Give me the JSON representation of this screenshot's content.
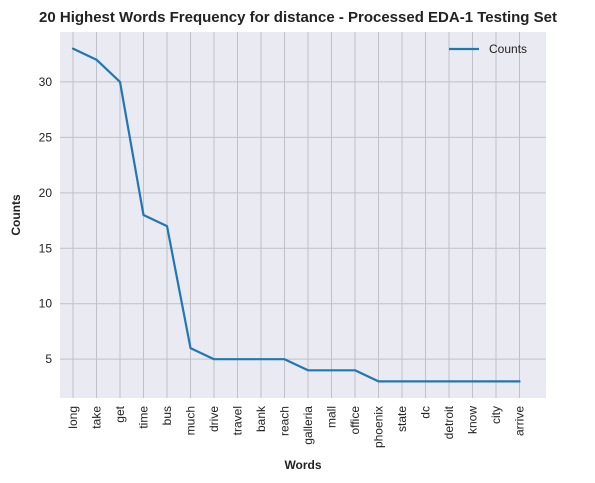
{
  "chart_data": {
    "type": "line",
    "title": "20 Highest Words Frequency for distance - Processed EDA-1 Testing Set",
    "xlabel": "Words",
    "ylabel": "Counts",
    "categories": [
      "long",
      "take",
      "get",
      "time",
      "bus",
      "much",
      "drive",
      "travel",
      "bank",
      "reach",
      "galleria",
      "mall",
      "office",
      "phoenix",
      "state",
      "dc",
      "detroit",
      "know",
      "city",
      "arrive"
    ],
    "series": [
      {
        "name": "Counts",
        "values": [
          33,
          32,
          30,
          18,
          17,
          6,
          5,
          5,
          5,
          5,
          4,
          4,
          4,
          3,
          3,
          3,
          3,
          3,
          3,
          3
        ]
      }
    ],
    "yticks": [
      5,
      10,
      15,
      20,
      25,
      30
    ],
    "ylim": [
      1.5,
      34.5
    ],
    "grid": true,
    "legend_position": "top-right",
    "colors": {
      "line": "#1f77b4",
      "background": "#eaeaf2",
      "grid": "#c0c0c8"
    }
  }
}
